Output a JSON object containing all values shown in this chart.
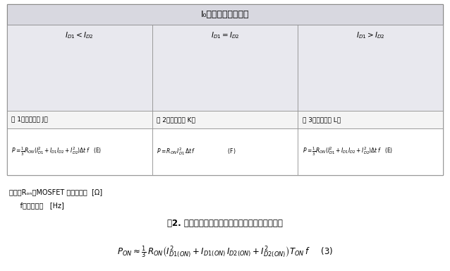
{
  "title": "I₀随时间的变化情况",
  "col_titles": [
    "$I_{D1}<I_{D2}$",
    "$I_{D1}=I_{D2}$",
    "$I_{D1}>I_{D2}$"
  ],
  "col_labels": [
    "例 1（参见附录 J）",
    "例 2（参见附录 K）",
    "例 3（参见附录 L）"
  ],
  "note_line1": "但是，Rₒₙ：MOSFET 的导通电阻  [Ω]",
  "note_line2": "     f：开关频率   [Hz]",
  "caption": "表2. 各种波形形状的线性近似法导通损耗计算公式",
  "table_bg": "#e8e8ee",
  "header_bg": "#d8d8e0",
  "cell_bg": "#ffffff",
  "line_color": "#4a90d9",
  "dot_color": "#111111",
  "border_color": "#aaaaaa",
  "fig_bg": "#ffffff",
  "formulas": [
    "$P = \\frac{1}{3}R_{ON}(I_{D1}^2 + I_{D1}I_{D2} + I_{D2}^2)\\Delta t\\,f$   (E)",
    "$P = R_{ON}\\,I_{D1}^2\\,\\Delta t\\,f$                    (F)",
    "$P = \\frac{1}{3}R_{ON}(I_{D1}^2 + I_{D1}I_{D2} + I_{D2}^2)\\Delta t\\,f$   (E)"
  ],
  "main_formula": "$P_{ON} \\approx \\frac{1}{3}\\,R_{ON}\\left(I_{D1(ON)}^2 + I_{D1(ON)}\\,I_{D2(ON)} + I_{D2(ON)}^2\\right)T_{ON}\\,f$     (3)"
}
